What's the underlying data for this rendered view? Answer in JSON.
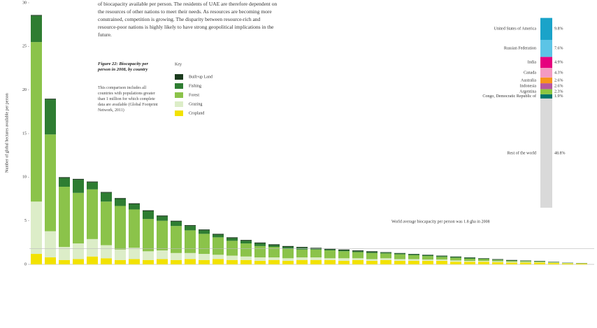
{
  "chart_data": {
    "type": "stacked-bar",
    "paragraph": "of biocapacity available per person. The residents of UAE are therefore dependent on the resources of other nations to meet their needs. As resources are becoming more constrained, competition is growing. The disparity between resource-rich and resource-poor nations is highly likely to have strong geopolitical implications in the future.",
    "caption_title": "Figure 22: Biocapacity per person in 2008, by country",
    "caption_text": "This comparison includes all countries with populations greater than 1 million for which complete data are available (Global Footprint Network, 2011)",
    "legend_title": "Key",
    "y_label": "Number of global hectares available per person",
    "average_label": "World average biocapacity per person was 1.8 gha in 2008",
    "average": 1.8,
    "ylim": [
      0,
      30
    ],
    "yticks": [
      0,
      5,
      10,
      15,
      20,
      25,
      30
    ],
    "categories": [
      null,
      null,
      null,
      null,
      null,
      null,
      null,
      null,
      null,
      null,
      null,
      null,
      null,
      null,
      null,
      null,
      null,
      null,
      null,
      null,
      null,
      null,
      null,
      null,
      null,
      null,
      null,
      null,
      null,
      null,
      null,
      null,
      null,
      null,
      null,
      null,
      null,
      null,
      null,
      null
    ],
    "series": [
      {
        "name": "Built-up Land",
        "color": "#1b3b1e",
        "values": [
          0.1,
          0.1,
          0.1,
          0.1,
          0.1,
          0.1,
          0.1,
          0.1,
          0.1,
          0.1,
          0.1,
          0.1,
          0.1,
          0.1,
          0.1,
          0.1,
          0.1,
          0.1,
          0.1,
          0.1,
          0.1,
          0.1,
          0.1,
          0.1,
          0.1,
          0.05,
          0.05,
          0.05,
          0.05,
          0.05,
          0.05,
          0.05,
          0.05,
          0.05,
          0.05,
          0.03,
          0.03,
          0.03,
          0.02,
          0.02
        ]
      },
      {
        "name": "Fishing",
        "color": "#2e7d32",
        "values": [
          3,
          4,
          1,
          1.5,
          0.8,
          1,
          0.8,
          0.6,
          0.9,
          0.5,
          0.5,
          0.5,
          0.4,
          0.3,
          0.3,
          0.3,
          0.3,
          0.2,
          0.2,
          0.2,
          0.1,
          0.1,
          0.1,
          0.1,
          0.1,
          0.1,
          0.1,
          0.1,
          0.1,
          0.1,
          0.1,
          0.1,
          0.05,
          0.05,
          0.05,
          0.04,
          0.04,
          0.02,
          0.02,
          0.01
        ]
      },
      {
        "name": "Forest",
        "color": "#8bc34a",
        "values": [
          18.3,
          11.1,
          6.9,
          5.8,
          5.7,
          5,
          5,
          4.4,
          3.7,
          3.4,
          3.1,
          2.6,
          2.3,
          2,
          1.7,
          1.5,
          1.3,
          1.2,
          1.1,
          0.9,
          0.9,
          0.9,
          0.8,
          0.7,
          0.7,
          0.55,
          0.55,
          0.45,
          0.4,
          0.3,
          0.3,
          0.25,
          0.2,
          0.15,
          0.1,
          0.1,
          0.07,
          0.05,
          0.03,
          0.02
        ]
      },
      {
        "name": "Grazing",
        "color": "#dcedc8",
        "values": [
          6,
          3,
          1.5,
          1.8,
          2,
          1.5,
          1.2,
          1.3,
          1,
          1,
          0.8,
          0.7,
          0.7,
          0.5,
          0.5,
          0.4,
          0.4,
          0.3,
          0.3,
          0.3,
          0.3,
          0.2,
          0.3,
          0.2,
          0.2,
          0.2,
          0.2,
          0.2,
          0.15,
          0.15,
          0.15,
          0.1,
          0.1,
          0.1,
          0.1,
          0.08,
          0.06,
          0.05,
          0.03,
          0.02
        ]
      },
      {
        "name": "Cropland",
        "color": "#f2e200",
        "values": [
          1.2,
          0.8,
          0.5,
          0.6,
          0.9,
          0.7,
          0.5,
          0.6,
          0.5,
          0.6,
          0.5,
          0.6,
          0.5,
          0.6,
          0.5,
          0.5,
          0.4,
          0.5,
          0.4,
          0.5,
          0.5,
          0.5,
          0.4,
          0.5,
          0.4,
          0.5,
          0.4,
          0.4,
          0.4,
          0.4,
          0.3,
          0.3,
          0.3,
          0.25,
          0.2,
          0.2,
          0.2,
          0.15,
          0.1,
          0.08
        ]
      }
    ],
    "share": {
      "categories": [
        "United States of America",
        "Russian Federation",
        "India",
        "Canada",
        "Australia",
        "Indonesia",
        "Argentina",
        "Congo, Democratic Republic of",
        "Rest of the world"
      ],
      "values": [
        9.8,
        7.6,
        4.9,
        4.3,
        2.6,
        2.6,
        2.3,
        1.9,
        48.8
      ],
      "value_labels": [
        "9.8%",
        "7.6%",
        "4.9%",
        "4.3%",
        "2.6%",
        "2.6%",
        "2.3%",
        "1.9%",
        "48.8%"
      ],
      "colors": [
        "#1aa3c9",
        "#5cc4e6",
        "#e6007e",
        "#f49ac1",
        "#f7941d",
        "#b8569e",
        "#8dc63f",
        "#00746b",
        "#d9d9d9"
      ]
    }
  }
}
